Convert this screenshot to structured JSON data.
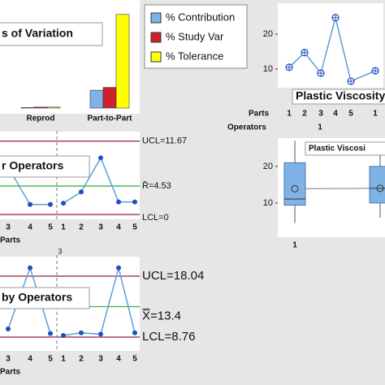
{
  "chart_data": [
    {
      "type": "bar",
      "title": "s of Variation",
      "categories": [
        "Reprod",
        "Part-to-Part"
      ],
      "series": [
        {
          "name": "% Contribution",
          "color": "#7fb2e5",
          "values": [
            0.5,
            19
          ]
        },
        {
          "name": "% Study Var",
          "color": "#d0202e",
          "values": [
            1,
            22
          ]
        },
        {
          "name": "% Tolerance",
          "color": "#ffff00",
          "values": [
            1,
            100
          ]
        }
      ],
      "ylim": [
        0,
        105
      ]
    },
    {
      "type": "control",
      "title": "r Operators",
      "categories": [
        "3",
        "4",
        "5",
        null,
        "1",
        "2",
        "3",
        "4",
        "5"
      ],
      "values": [
        7.5,
        1.6,
        1.6,
        null,
        1.8,
        3.6,
        9.0,
        2.0,
        2.0
      ],
      "color": "#1f4fbf",
      "x_label": "Parts",
      "ylim": [
        -0.5,
        12.8
      ],
      "reference_lines": [
        {
          "value": 11.67,
          "label": "UCL=11.67",
          "color": "#9b1b4a"
        },
        {
          "value": 4.53,
          "label": "R̄=4.53",
          "color": "#3cb043"
        },
        {
          "value": 0,
          "label": "LCL=0",
          "color": "#9b1b4a"
        }
      ]
    },
    {
      "type": "control",
      "title": "by Operators",
      "group_label": "3",
      "categories": [
        "3",
        "4",
        "5",
        null,
        "1",
        "2",
        "3",
        "4",
        "5"
      ],
      "values": [
        10.0,
        19.3,
        9.3,
        null,
        9.0,
        9.4,
        9.2,
        19.3,
        9.4
      ],
      "color": "#1f4fbf",
      "x_label": "Parts",
      "ylim": [
        6.9,
        20.76
      ],
      "reference_lines": [
        {
          "value": 18.04,
          "label": "UCL=18.04",
          "color": "#9b1b4a"
        },
        {
          "value": 13.4,
          "label": "X̿=13.4",
          "color": "#3cb043"
        },
        {
          "value": 8.76,
          "label": "LCL=8.76",
          "color": "#9b1b4a"
        }
      ]
    },
    {
      "type": "line",
      "title": "Plastic Viscosity",
      "categories": [
        "1",
        "2",
        "3",
        "4",
        "5",
        "1"
      ],
      "values": [
        10.5,
        14.7,
        8.8,
        24.7,
        6.5,
        9.5
      ],
      "color": "#1f4fbf",
      "x_label": "Parts",
      "group_axis_label": "Operators",
      "group_labels": [
        "1"
      ],
      "ylim": [
        5.35,
        28.6
      ],
      "yticks": [
        10,
        20
      ]
    },
    {
      "type": "box",
      "title": "Plastic Viscosi",
      "categories": [
        "1",
        null
      ],
      "color": "#7fb2e5",
      "boxes": [
        {
          "min": 4.5,
          "q1": 9.4,
          "median": 11.1,
          "q3": 21,
          "max": 27,
          "mean": 13.9
        },
        {
          "min": 6,
          "q1": 10,
          "median": 14,
          "q3": 20,
          "max": 25,
          "mean": 14
        }
      ],
      "ylim": [
        1.1,
        27.3
      ],
      "yticks": [
        10,
        20
      ]
    }
  ]
}
